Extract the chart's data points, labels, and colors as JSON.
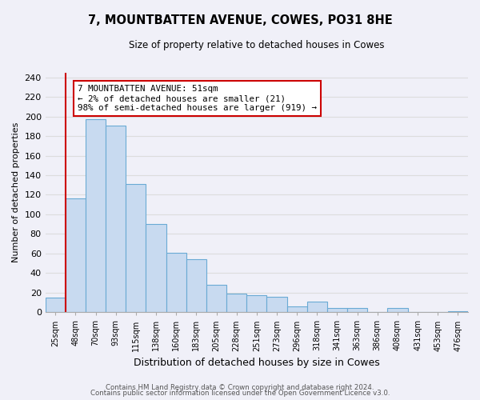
{
  "title": "7, MOUNTBATTEN AVENUE, COWES, PO31 8HE",
  "subtitle": "Size of property relative to detached houses in Cowes",
  "xlabel": "Distribution of detached houses by size in Cowes",
  "ylabel": "Number of detached properties",
  "bar_labels": [
    "25sqm",
    "48sqm",
    "70sqm",
    "93sqm",
    "115sqm",
    "138sqm",
    "160sqm",
    "183sqm",
    "205sqm",
    "228sqm",
    "251sqm",
    "273sqm",
    "296sqm",
    "318sqm",
    "341sqm",
    "363sqm",
    "386sqm",
    "408sqm",
    "431sqm",
    "453sqm",
    "476sqm"
  ],
  "bar_values": [
    15,
    116,
    197,
    191,
    131,
    90,
    61,
    54,
    28,
    19,
    17,
    16,
    6,
    11,
    4,
    4,
    0,
    4,
    0,
    0,
    1
  ],
  "bar_color": "#c8daf0",
  "bar_edge_color": "#6aaad4",
  "vline_x": 0.5,
  "vline_color": "#cc0000",
  "annotation_title": "7 MOUNTBATTEN AVENUE: 51sqm",
  "annotation_line1": "← 2% of detached houses are smaller (21)",
  "annotation_line2": "98% of semi-detached houses are larger (919) →",
  "annotation_box_color": "#ffffff",
  "annotation_border_color": "#cc0000",
  "ylim": [
    0,
    245
  ],
  "yticks": [
    0,
    20,
    40,
    60,
    80,
    100,
    120,
    140,
    160,
    180,
    200,
    220,
    240
  ],
  "footer1": "Contains HM Land Registry data © Crown copyright and database right 2024.",
  "footer2": "Contains public sector information licensed under the Open Government Licence v3.0.",
  "grid_color": "#dddddd",
  "background_color": "#f0f0f8"
}
